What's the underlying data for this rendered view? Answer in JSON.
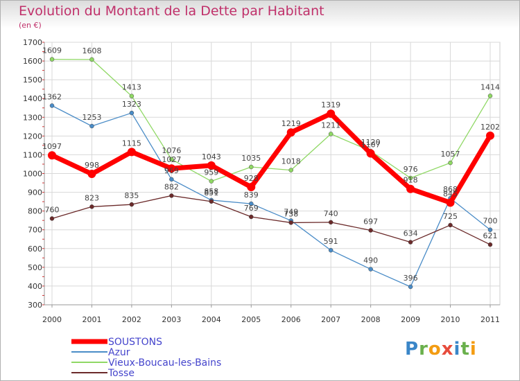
{
  "header": {
    "title": "Evolution du Montant de la Dette par Habitant",
    "unit": "(en €)"
  },
  "logo": {
    "text": "Proxiti"
  },
  "chart_data": {
    "type": "line",
    "title": "Evolution du Montant de la Dette par Habitant",
    "subtitle": "(en €)",
    "xlabel": "",
    "ylabel": "",
    "categories": [
      "2000",
      "2001",
      "2002",
      "2003",
      "2004",
      "2005",
      "2006",
      "2007",
      "2008",
      "2009",
      "2010",
      "2011"
    ],
    "ylim": [
      300,
      1700
    ],
    "yticks": [
      300,
      400,
      500,
      600,
      700,
      800,
      900,
      1000,
      1100,
      1200,
      1300,
      1400,
      1500,
      1600,
      1700
    ],
    "grid": true,
    "legend_position": "bottom-left",
    "series": [
      {
        "name": "Azur",
        "color": "#4a8cc7",
        "values": [
          1362,
          1253,
          1323,
          969,
          858,
          839,
          749,
          591,
          490,
          396,
          868,
          700
        ]
      },
      {
        "name": "Vieux-Boucau-les-Bains",
        "color": "#8fd864",
        "values": [
          1609,
          1608,
          1413,
          1076,
          959,
          1035,
          1018,
          1211,
          1120,
          976,
          1057,
          1414
        ]
      },
      {
        "name": "Tosse",
        "color": "#6b2a2a",
        "values": [
          760,
          823,
          835,
          882,
          851,
          769,
          738,
          740,
          697,
          634,
          725,
          621
        ]
      },
      {
        "name": "SOUSTONS",
        "color": "#ff0000",
        "values": [
          1097,
          998,
          1115,
          1027,
          1043,
          928,
          1219,
          1319,
          1107,
          918,
          845,
          1202
        ]
      }
    ],
    "legend": [
      {
        "name": "SOUSTONS",
        "color": "#ff0000"
      },
      {
        "name": "Azur",
        "color": "#4a8cc7"
      },
      {
        "name": "Vieux-Boucau-les-Bains",
        "color": "#8fd864"
      },
      {
        "name": "Tosse",
        "color": "#6b2a2a"
      }
    ]
  }
}
